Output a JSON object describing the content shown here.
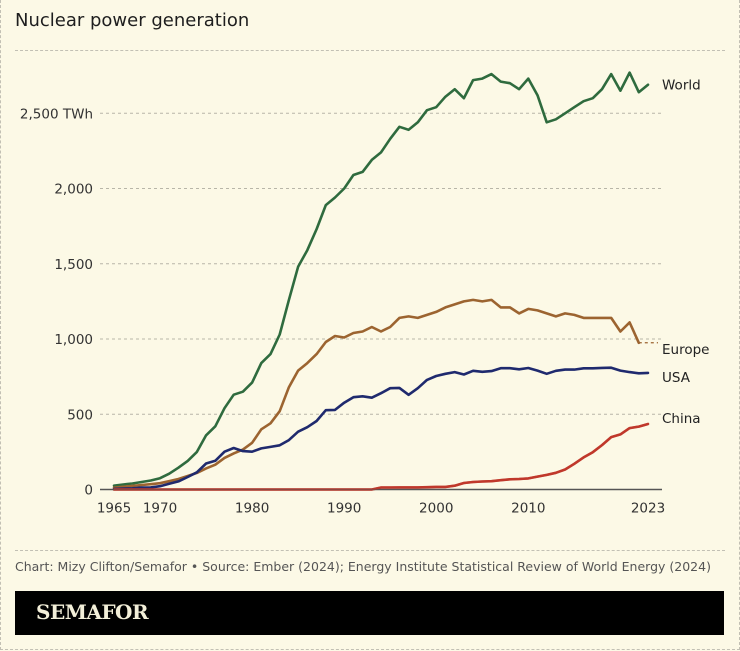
{
  "title": "Nuclear power generation",
  "source": "Chart: Mizy Clifton/Semafor • Source: Ember (2024); Energy Institute Statistical Review of World Energy (2024)",
  "brand": "SEMAFOR",
  "colors": {
    "background": "#fcf9e6",
    "World": "#2f6b3e",
    "Europe": "#9c6430",
    "USA": "#1f2a6e",
    "China": "#c0392b",
    "axis": "#555555",
    "grid": "#b8b6a8"
  },
  "chart_data": {
    "type": "line",
    "title": "Nuclear power generation",
    "xlabel": "",
    "ylabel": "TWh",
    "xlim": [
      1965,
      2023
    ],
    "ylim": [
      0,
      2800
    ],
    "grid": true,
    "x_ticks": [
      1965,
      1970,
      1980,
      1990,
      2000,
      2010,
      2023
    ],
    "x_tick_labels": [
      "1965",
      "1970",
      "1980",
      "1990",
      "2000",
      "2010",
      "2023"
    ],
    "y_ticks": [
      0,
      500,
      1000,
      1500,
      2000,
      2500
    ],
    "y_tick_labels": [
      "0",
      "500",
      "1,000",
      "1,500",
      "2,000",
      "2,500 TWh"
    ],
    "legend": "direct-labels-right",
    "series": [
      {
        "name": "World",
        "start_year": 1965,
        "values": [
          25,
          33,
          40,
          50,
          60,
          75,
          105,
          145,
          190,
          250,
          360,
          420,
          540,
          630,
          650,
          710,
          840,
          900,
          1030,
          1260,
          1480,
          1590,
          1730,
          1890,
          1940,
          2000,
          2090,
          2110,
          2190,
          2240,
          2330,
          2410,
          2390,
          2440,
          2520,
          2540,
          2610,
          2660,
          2600,
          2720,
          2730,
          2760,
          2710,
          2700,
          2660,
          2730,
          2620,
          2440,
          2460,
          2500,
          2540,
          2580,
          2600,
          2660,
          2760,
          2650,
          2770,
          2640,
          2690
        ]
      },
      {
        "name": "Europe",
        "start_year": 1965,
        "values": [
          12,
          18,
          24,
          30,
          35,
          42,
          55,
          70,
          90,
          110,
          140,
          165,
          210,
          240,
          265,
          310,
          400,
          440,
          520,
          680,
          790,
          840,
          900,
          980,
          1020,
          1010,
          1040,
          1050,
          1080,
          1050,
          1080,
          1140,
          1150,
          1140,
          1160,
          1180,
          1210,
          1230,
          1250,
          1260,
          1250,
          1260,
          1210,
          1210,
          1170,
          1200,
          1190,
          1170,
          1150,
          1170,
          1160,
          1140,
          1140,
          1140,
          1140,
          1050,
          1110,
          975
        ],
        "trailing_dashed_to": 2023
      },
      {
        "name": "USA",
        "start_year": 1965,
        "values": [
          4,
          6,
          8,
          13,
          14,
          22,
          38,
          54,
          83,
          114,
          173,
          191,
          251,
          276,
          255,
          251,
          273,
          283,
          294,
          328,
          384,
          414,
          455,
          527,
          529,
          577,
          613,
          619,
          610,
          640,
          673,
          675,
          629,
          673,
          728,
          754,
          769,
          780,
          764,
          789,
          782,
          787,
          806,
          806,
          799,
          807,
          790,
          769,
          789,
          797,
          797,
          805,
          805,
          808,
          809,
          790,
          780,
          772,
          775
        ]
      },
      {
        "name": "China",
        "start_year": 1965,
        "values": [
          0,
          0,
          0,
          0,
          0,
          0,
          0,
          0,
          0,
          0,
          0,
          0,
          0,
          0,
          0,
          0,
          0,
          0,
          0,
          0,
          0,
          0,
          0,
          0,
          0,
          0,
          0,
          0,
          0,
          13,
          13,
          14,
          14,
          14,
          15,
          17,
          17,
          25,
          43,
          50,
          53,
          55,
          62,
          68,
          70,
          74,
          86,
          97,
          111,
          133,
          171,
          213,
          248,
          295,
          348,
          366,
          408,
          418,
          435
        ]
      }
    ]
  }
}
